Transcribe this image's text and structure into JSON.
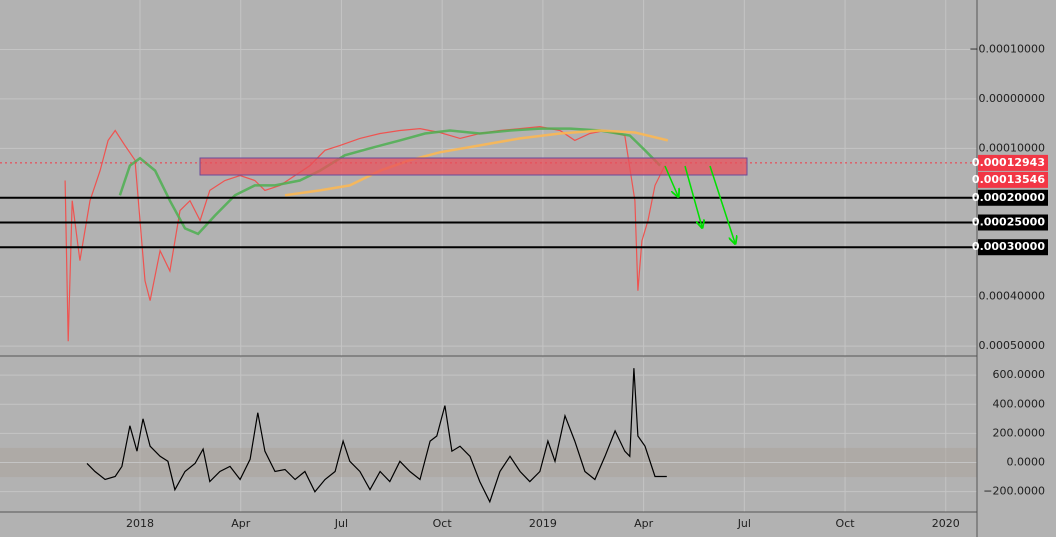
{
  "chart_data": [
    {
      "type": "line",
      "grid": true,
      "background": "#b2b2b2",
      "xlim": [
        -4.17,
        24.93
      ],
      "ylim": [
        0.00052,
        -0.0002
      ],
      "yticks": [
        {
          "value": -0.0001,
          "label": "−0.00010000"
        },
        {
          "value": 0,
          "label": "0.00000000"
        },
        {
          "value": 0.0001,
          "label": "0.00010000"
        },
        {
          "value": 0.0004,
          "label": "0.00040000"
        },
        {
          "value": 0.0005,
          "label": "0.00050000"
        }
      ],
      "price_lines": [
        {
          "value": 0.0002,
          "label": "0.00020000"
        },
        {
          "value": 0.00025,
          "label": "0.00025000"
        },
        {
          "value": 0.0003,
          "label": "0.00030000"
        }
      ],
      "last_price": {
        "value": 0.00012943,
        "label": "0.00012943",
        "color": "#f23645"
      },
      "prev_price": {
        "value": 0.00013546,
        "label": "0.00013546",
        "color": "#f23645"
      },
      "series": [
        {
          "color": "#ef5350",
          "x": [
            -2.23,
            -2.14,
            -2.02,
            -1.79,
            -1.49,
            -1.19,
            -0.95,
            -0.74,
            -0.45,
            -0.15,
            0.15,
            0.3,
            0.6,
            0.89,
            1.19,
            1.49,
            1.79,
            2.08,
            2.53,
            2.98,
            3.42,
            3.72,
            4.17,
            4.62,
            5.06,
            5.51,
            5.96,
            6.55,
            7.15,
            7.74,
            8.34,
            8.93,
            9.53,
            10.12,
            10.72,
            11.32,
            11.91,
            12.51,
            12.95,
            13.4,
            13.85,
            14.44,
            14.74,
            14.83,
            14.95,
            15.13,
            15.34,
            15.63
          ],
          "values": [
            0.000165,
            0.00049,
            0.000206,
            0.000327,
            0.000206,
            0.000145,
            8.4e-05,
            6.4e-05,
            9.4e-05,
            0.000124,
            0.000368,
            0.000408,
            0.000307,
            0.000348,
            0.000226,
            0.000206,
            0.000246,
            0.000185,
            0.000165,
            0.000155,
            0.000165,
            0.000185,
            0.000175,
            0.000155,
            0.000135,
            0.000104,
            9.4e-05,
            8e-05,
            7e-05,
            6.4e-05,
            6e-05,
            6.8e-05,
            8e-05,
            7e-05,
            6.4e-05,
            6e-05,
            5.6e-05,
            6.4e-05,
            8.4e-05,
            7e-05,
            6.4e-05,
            7.4e-05,
            0.000206,
            0.000388,
            0.000287,
            0.000246,
            0.000175,
            0.000135
          ]
        },
        {
          "color": "#4caf50",
          "x": [
            -0.6,
            -0.3,
            0,
            0.45,
            0.89,
            1.34,
            1.73,
            2.23,
            2.83,
            3.42,
            4.02,
            4.76,
            5.36,
            6.1,
            6.85,
            7.74,
            8.49,
            9.23,
            10.12,
            11.02,
            11.91,
            12.81,
            13.7,
            14.59,
            15.04,
            15.49
          ],
          "values": [
            0.000195,
            0.000135,
            0.00012,
            0.000145,
            0.000206,
            0.000262,
            0.000273,
            0.000236,
            0.000195,
            0.000175,
            0.000175,
            0.000165,
            0.000145,
            0.000114,
            0.0001,
            8.4e-05,
            7e-05,
            6.4e-05,
            7e-05,
            6.4e-05,
            6e-05,
            6e-05,
            6.4e-05,
            7.4e-05,
            0.000104,
            0.000135
          ]
        },
        {
          "color": "#ffb74d",
          "x": [
            4.32,
            5.36,
            6.25,
            7.15,
            8.04,
            8.93,
            10.12,
            11.32,
            12.51,
            13.7,
            14.74,
            15.72
          ],
          "values": [
            0.000195,
            0.000185,
            0.000175,
            0.000145,
            0.000124,
            0.000108,
            9.4e-05,
            8e-05,
            7e-05,
            6.4e-05,
            6.8e-05,
            8.4e-05
          ]
        }
      ]
    },
    {
      "type": "line",
      "grid": true,
      "xlim": [
        -4.17,
        24.93
      ],
      "ylim": [
        -340,
        718
      ],
      "band": [
        -100,
        100
      ],
      "xticks": [
        {
          "value": 0,
          "label": "2018"
        },
        {
          "value": 3,
          "label": "Apr"
        },
        {
          "value": 6,
          "label": "Jul"
        },
        {
          "value": 9,
          "label": "Oct"
        },
        {
          "value": 12,
          "label": "2019"
        },
        {
          "value": 15,
          "label": "Apr"
        },
        {
          "value": 18,
          "label": "Jul"
        },
        {
          "value": 21,
          "label": "Oct"
        },
        {
          "value": 24,
          "label": "2020"
        }
      ],
      "yticks": [
        {
          "value": 600,
          "label": "600.0000"
        },
        {
          "value": 400,
          "label": "400.0000"
        },
        {
          "value": 200,
          "label": "200.0000"
        },
        {
          "value": 0,
          "label": "0.0000"
        },
        {
          "value": -200,
          "label": "−200.0000"
        }
      ],
      "series": [
        {
          "color": "#000000",
          "x": [
            -1.58,
            -1.34,
            -1.04,
            -0.74,
            -0.54,
            -0.3,
            -0.09,
            0.09,
            0.3,
            0.6,
            0.83,
            1.04,
            1.34,
            1.64,
            1.88,
            2.08,
            2.38,
            2.68,
            2.98,
            3.28,
            3.51,
            3.72,
            4.02,
            4.32,
            4.62,
            4.91,
            5.21,
            5.51,
            5.81,
            6.05,
            6.25,
            6.55,
            6.85,
            7.15,
            7.44,
            7.74,
            8.04,
            8.34,
            8.64,
            8.84,
            9.08,
            9.29,
            9.53,
            9.83,
            10.12,
            10.42,
            10.72,
            11.02,
            11.32,
            11.61,
            11.91,
            12.15,
            12.36,
            12.66,
            12.95,
            13.25,
            13.55,
            13.85,
            14.15,
            14.44,
            14.59,
            14.71,
            14.83,
            15.04,
            15.34,
            15.69
          ],
          "values": [
            -6,
            -62,
            -117,
            -96,
            -27,
            252,
            78,
            300,
            112,
            43,
            8,
            -187,
            -62,
            -6,
            92,
            -131,
            -62,
            -27,
            -117,
            22,
            342,
            78,
            -62,
            -48,
            -117,
            -62,
            -201,
            -117,
            -62,
            147,
            8,
            -62,
            -187,
            -62,
            -131,
            8,
            -62,
            -117,
            147,
            182,
            391,
            78,
            112,
            43,
            -131,
            -270,
            -62,
            43,
            -62,
            -131,
            -62,
            147,
            8,
            321,
            147,
            -62,
            -117,
            43,
            217,
            78,
            43,
            648,
            182,
            112,
            -96,
            -96
          ]
        }
      ]
    }
  ]
}
